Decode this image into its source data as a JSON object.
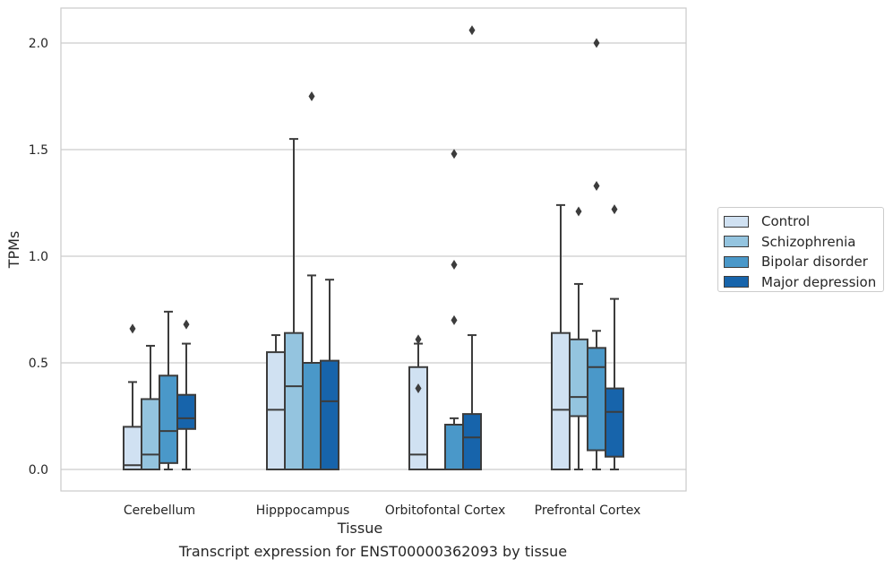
{
  "caption": "Transcript expression for ENST00000362093 by tissue",
  "chart_data": {
    "type": "box",
    "title": "",
    "xlabel": "Tissue",
    "ylabel": "TPMs",
    "ylim": [
      -0.1,
      2.17
    ],
    "yticks": [
      0.0,
      0.5,
      1.0,
      1.5,
      2.0
    ],
    "ytick_labels": [
      "0.0",
      "0.5",
      "1.0",
      "1.5",
      "2.0"
    ],
    "grid": "horizontal",
    "legend_position": "right",
    "categories": [
      "Cerebellum",
      "Hipppocampus",
      "Orbitofontal Cortex",
      "Prefrontal Cortex"
    ],
    "series": [
      {
        "name": "Control",
        "color": "#d0e1f2",
        "boxes": [
          {
            "whislo": 0.0,
            "q1": 0.0,
            "med": 0.02,
            "q3": 0.2,
            "whishi": 0.41,
            "fliers": [
              0.66
            ]
          },
          {
            "whislo": 0.0,
            "q1": 0.0,
            "med": 0.28,
            "q3": 0.55,
            "whishi": 0.63,
            "fliers": []
          },
          {
            "whislo": 0.0,
            "q1": 0.0,
            "med": 0.07,
            "q3": 0.48,
            "whishi": 0.59,
            "fliers": [
              0.61,
              0.38
            ]
          },
          {
            "whislo": 0.0,
            "q1": 0.0,
            "med": 0.28,
            "q3": 0.64,
            "whishi": 1.24,
            "fliers": []
          }
        ]
      },
      {
        "name": "Schizophrenia",
        "color": "#94c4df",
        "boxes": [
          {
            "whislo": 0.0,
            "q1": 0.0,
            "med": 0.07,
            "q3": 0.33,
            "whishi": 0.58,
            "fliers": []
          },
          {
            "whislo": 0.0,
            "q1": 0.0,
            "med": 0.39,
            "q3": 0.64,
            "whishi": 1.55,
            "fliers": []
          },
          {
            "whislo": 0.0,
            "q1": 0.0,
            "med": 0.0,
            "q3": 0.0,
            "whishi": 0.0,
            "fliers": []
          },
          {
            "whislo": 0.0,
            "q1": 0.25,
            "med": 0.34,
            "q3": 0.61,
            "whishi": 0.87,
            "fliers": [
              1.21
            ]
          }
        ]
      },
      {
        "name": "Bipolar disorder",
        "color": "#4a98c9",
        "boxes": [
          {
            "whislo": 0.0,
            "q1": 0.03,
            "med": 0.18,
            "q3": 0.44,
            "whishi": 0.74,
            "fliers": []
          },
          {
            "whislo": 0.0,
            "q1": 0.0,
            "med": 0.5,
            "q3": 0.5,
            "whishi": 0.91,
            "fliers": [
              1.75
            ]
          },
          {
            "whislo": 0.0,
            "q1": 0.0,
            "med": 0.21,
            "q3": 0.21,
            "whishi": 0.24,
            "fliers": [
              0.7,
              0.96,
              1.48
            ]
          },
          {
            "whislo": 0.0,
            "q1": 0.09,
            "med": 0.48,
            "q3": 0.57,
            "whishi": 0.65,
            "fliers": [
              1.33,
              2.0
            ]
          }
        ]
      },
      {
        "name": "Major depression",
        "color": "#1764ab",
        "boxes": [
          {
            "whislo": 0.0,
            "q1": 0.19,
            "med": 0.24,
            "q3": 0.35,
            "whishi": 0.59,
            "fliers": [
              0.68
            ]
          },
          {
            "whislo": 0.0,
            "q1": 0.0,
            "med": 0.32,
            "q3": 0.51,
            "whishi": 0.89,
            "fliers": []
          },
          {
            "whislo": 0.0,
            "q1": 0.0,
            "med": 0.15,
            "q3": 0.26,
            "whishi": 0.63,
            "fliers": [
              2.06
            ]
          },
          {
            "whislo": 0.0,
            "q1": 0.06,
            "med": 0.27,
            "q3": 0.38,
            "whishi": 0.8,
            "fliers": [
              1.22
            ]
          }
        ]
      }
    ]
  }
}
